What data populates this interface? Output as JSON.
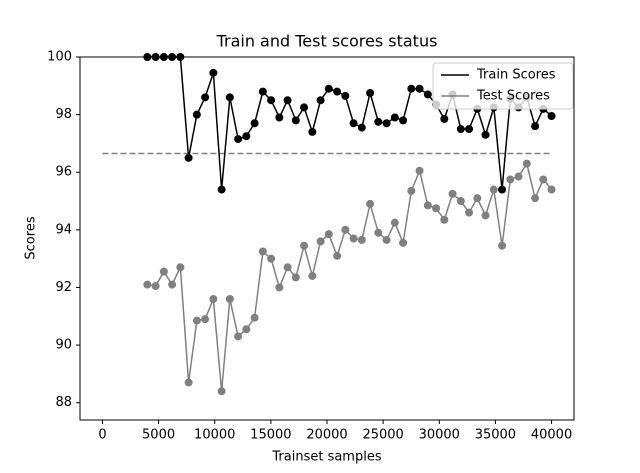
{
  "chart_data": {
    "type": "line",
    "title": "Train and Test scores status",
    "x_label": "Trainset samples",
    "y_label": "Scores",
    "x": [
      4000,
      4735,
      5469,
      6204,
      6939,
      7673,
      8408,
      9143,
      9878,
      10612,
      11347,
      12082,
      12816,
      13551,
      14286,
      15020,
      15755,
      16490,
      17224,
      17959,
      18694,
      19429,
      20163,
      20898,
      21633,
      22367,
      23102,
      23837,
      24571,
      25306,
      26041,
      26776,
      27510,
      28245,
      28980,
      29714,
      30449,
      31184,
      31918,
      32653,
      33388,
      34122,
      34857,
      35592,
      36327,
      37061,
      37796,
      38531,
      39265,
      40000
    ],
    "series": [
      {
        "name": "Train Scores",
        "color": "#000000",
        "values": [
          100,
          100,
          100,
          100,
          100,
          96.5,
          98.0,
          98.6,
          99.45,
          95.4,
          98.6,
          97.15,
          97.25,
          97.7,
          98.8,
          98.5,
          97.9,
          98.5,
          97.8,
          98.25,
          97.4,
          98.5,
          98.9,
          98.8,
          98.65,
          97.7,
          97.55,
          98.75,
          97.75,
          97.7,
          97.9,
          97.8,
          98.9,
          98.9,
          98.7,
          98.35,
          97.85,
          98.7,
          97.5,
          97.5,
          98.2,
          97.3,
          98.25,
          95.4,
          98.55,
          98.25,
          98.6,
          97.6,
          98.2,
          97.95
        ]
      },
      {
        "name": "Test Scores",
        "color": "#808080",
        "values": [
          92.1,
          92.05,
          92.55,
          92.1,
          92.7,
          88.7,
          90.85,
          90.9,
          91.6,
          88.4,
          91.6,
          90.3,
          90.55,
          90.95,
          93.25,
          93.0,
          92.0,
          92.7,
          92.35,
          93.45,
          92.4,
          93.6,
          93.85,
          93.1,
          94.0,
          93.7,
          93.65,
          94.9,
          93.9,
          93.65,
          94.25,
          93.55,
          95.35,
          96.05,
          94.85,
          94.75,
          94.35,
          95.25,
          95.0,
          94.6,
          95.1,
          94.5,
          95.4,
          93.45,
          95.75,
          95.85,
          96.3,
          95.1,
          95.75,
          95.4
        ]
      }
    ],
    "hline": {
      "y": 96.65,
      "xmin": 0,
      "xmax": 40000,
      "color": "#808080"
    },
    "xlim": [
      -2000,
      42000
    ],
    "xticks": [
      0,
      5000,
      10000,
      15000,
      20000,
      25000,
      30000,
      35000,
      40000
    ],
    "ylim": [
      87.4,
      100
    ],
    "yticks": [
      88,
      90,
      92,
      94,
      96,
      98,
      100
    ],
    "legend": "upper right",
    "grid": false
  }
}
